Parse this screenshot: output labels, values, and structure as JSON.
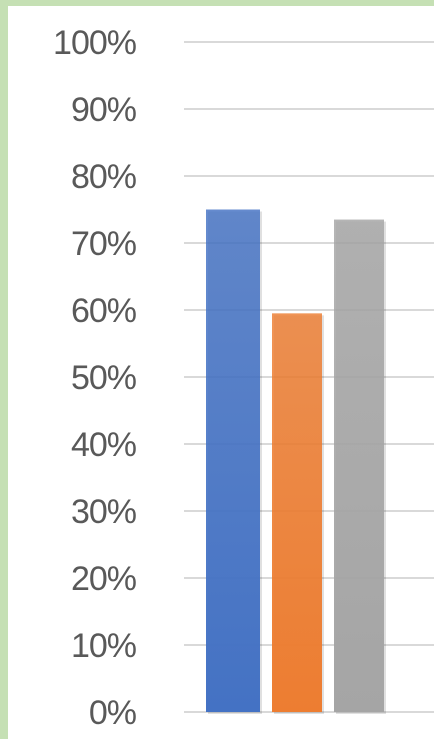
{
  "chart_data": {
    "type": "bar",
    "title": "",
    "xlabel": "",
    "ylabel": "",
    "categories": [
      "",
      "",
      ""
    ],
    "values": [
      0.75,
      0.595,
      0.735
    ],
    "colors": [
      "#4472c4",
      "#ed7d31",
      "#a5a5a5"
    ],
    "ylim": [
      0,
      1
    ],
    "yticks": [
      "0%",
      "10%",
      "20%",
      "30%",
      "40%",
      "50%",
      "60%",
      "70%",
      "80%",
      "90%",
      "100%"
    ],
    "grid": true,
    "legend": "none"
  }
}
